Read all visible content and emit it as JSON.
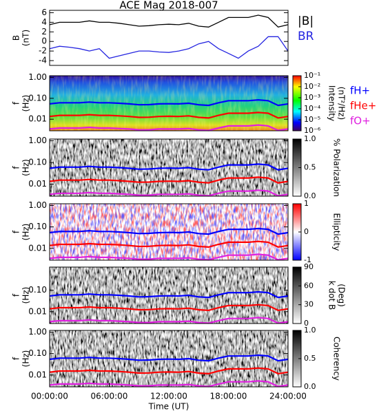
{
  "chart_data": [
    {
      "type": "line",
      "title": "ACE Mag 2018-007",
      "ylabel": [
        "B",
        "(nT)"
      ],
      "x": [
        0,
        1,
        2,
        3,
        4,
        5,
        6,
        7,
        8,
        9,
        10,
        11,
        12,
        13,
        14,
        15,
        16,
        17,
        18,
        19,
        20,
        21,
        22,
        23,
        24
      ],
      "xlim": [
        0,
        24
      ],
      "ylim": [
        -5,
        6.5
      ],
      "yticks": [
        -4,
        -2,
        0,
        2,
        4,
        6
      ],
      "series": [
        {
          "name": "|B|",
          "color": "#000000",
          "values": [
            3.5,
            4,
            4,
            4,
            4.3,
            4,
            4,
            3.8,
            3.5,
            3.2,
            3.3,
            3.5,
            3.6,
            3.5,
            3.8,
            3.2,
            3,
            4,
            5,
            5,
            5,
            5.5,
            5,
            3,
            3.5
          ]
        },
        {
          "name": "BR",
          "color": "#2424e0",
          "values": [
            -1.5,
            -1,
            -1.2,
            -1.5,
            -2,
            -1.5,
            -3.5,
            -3,
            -2.5,
            -2,
            -2,
            -2.2,
            -2.3,
            -2,
            -1.5,
            -0.5,
            0,
            -1.5,
            -2.5,
            -3.5,
            -2,
            -1,
            1,
            1,
            -2
          ]
        }
      ]
    },
    {
      "type": "spectrogram",
      "colorscale": "rainbow",
      "ylabel": [
        "f",
        "(Hz)"
      ],
      "zlabel": [
        "Intensity",
        "(nT²/Hz)"
      ],
      "x": [
        0,
        1,
        2,
        3,
        4,
        5,
        6,
        7,
        8,
        9,
        10,
        11,
        12,
        13,
        14,
        15,
        16,
        17,
        18,
        19,
        20,
        21,
        22,
        23,
        24
      ],
      "xlim": [
        0,
        24
      ],
      "ylim": [
        0.0028,
        1.2
      ],
      "ylog": true,
      "yticks": [
        0.01,
        {
          "value": 0.1,
          "label": "0.10"
        },
        {
          "value": 1,
          "label": "1.00"
        }
      ],
      "zlim": [
        1e-06,
        0.1
      ],
      "zlog": true,
      "zticks": [
        {
          "value": 1e-06,
          "label": "10⁻⁶"
        },
        {
          "value": 1e-05,
          "label": "10⁻⁵"
        },
        {
          "value": 0.0001,
          "label": "10⁻⁴"
        },
        {
          "value": 0.001,
          "label": "10⁻³"
        },
        {
          "value": 0.01,
          "label": "10⁻²"
        },
        {
          "value": 0.1,
          "label": "10⁻¹"
        }
      ],
      "series": [
        {
          "name": "fH+",
          "color": "#0000ff",
          "values": [
            0.054,
            0.061,
            0.061,
            0.061,
            0.066,
            0.061,
            0.061,
            0.058,
            0.054,
            0.049,
            0.05,
            0.054,
            0.055,
            0.054,
            0.058,
            0.049,
            0.046,
            0.061,
            0.077,
            0.077,
            0.077,
            0.084,
            0.077,
            0.046,
            0.054
          ]
        },
        {
          "name": "fHe+",
          "color": "#ff0000",
          "values": [
            0.0135,
            0.0153,
            0.0153,
            0.0153,
            0.0165,
            0.0153,
            0.0153,
            0.0145,
            0.0135,
            0.0123,
            0.0125,
            0.0135,
            0.0138,
            0.0135,
            0.0145,
            0.0123,
            0.0115,
            0.0153,
            0.0193,
            0.0193,
            0.0193,
            0.021,
            0.0193,
            0.0115,
            0.0135
          ]
        },
        {
          "name": "fO+",
          "color": "#e020e0",
          "values": [
            0.0034,
            0.0038,
            0.0038,
            0.0038,
            0.0041,
            0.0038,
            0.0038,
            0.0036,
            0.0034,
            0.0031,
            0.0031,
            0.0034,
            0.0034,
            0.0034,
            0.0036,
            0.0031,
            0.0029,
            0.0038,
            0.0048,
            0.0048,
            0.0048,
            0.0053,
            0.0048,
            0.0029,
            0.0034
          ]
        }
      ]
    },
    {
      "type": "spectrogram",
      "colorscale": "gray",
      "ylabel": [
        "f",
        "(Hz)"
      ],
      "zlabel": [
        "% Polarization"
      ],
      "x": [
        0,
        1,
        2,
        3,
        4,
        5,
        6,
        7,
        8,
        9,
        10,
        11,
        12,
        13,
        14,
        15,
        16,
        17,
        18,
        19,
        20,
        21,
        22,
        23,
        24
      ],
      "xlim": [
        0,
        24
      ],
      "ylim": [
        0.0028,
        1.2
      ],
      "ylog": true,
      "yticks": [
        0.01,
        {
          "value": 0.1,
          "label": "0.10"
        },
        {
          "value": 1,
          "label": "1.00"
        }
      ],
      "zlim": [
        0,
        1
      ],
      "zticks": [
        {
          "value": 0,
          "label": "0.0"
        },
        0.5,
        {
          "value": 1,
          "label": "1.0"
        }
      ],
      "series": [
        {
          "color": "#0000ff",
          "values": [
            0.054,
            0.061,
            0.061,
            0.061,
            0.066,
            0.061,
            0.061,
            0.058,
            0.054,
            0.049,
            0.05,
            0.054,
            0.055,
            0.054,
            0.058,
            0.049,
            0.046,
            0.061,
            0.077,
            0.077,
            0.077,
            0.084,
            0.077,
            0.046,
            0.054
          ]
        },
        {
          "color": "#ff0000",
          "values": [
            0.0135,
            0.0153,
            0.0153,
            0.0153,
            0.0165,
            0.0153,
            0.0153,
            0.0145,
            0.0135,
            0.0123,
            0.0125,
            0.0135,
            0.0138,
            0.0135,
            0.0145,
            0.0123,
            0.0115,
            0.0153,
            0.0193,
            0.0193,
            0.0193,
            0.021,
            0.0193,
            0.0115,
            0.0135
          ]
        },
        {
          "color": "#e020e0",
          "values": [
            0.0034,
            0.0038,
            0.0038,
            0.0038,
            0.0041,
            0.0038,
            0.0038,
            0.0036,
            0.0034,
            0.0031,
            0.0031,
            0.0034,
            0.0034,
            0.0034,
            0.0036,
            0.0031,
            0.0029,
            0.0038,
            0.0048,
            0.0048,
            0.0048,
            0.0053,
            0.0048,
            0.0029,
            0.0034
          ]
        }
      ]
    },
    {
      "type": "spectrogram",
      "colorscale": "bwr",
      "ylabel": [
        "f",
        "(Hz)"
      ],
      "zlabel": [
        "Ellipticity"
      ],
      "x": [
        0,
        1,
        2,
        3,
        4,
        5,
        6,
        7,
        8,
        9,
        10,
        11,
        12,
        13,
        14,
        15,
        16,
        17,
        18,
        19,
        20,
        21,
        22,
        23,
        24
      ],
      "xlim": [
        0,
        24
      ],
      "ylim": [
        0.0028,
        1.2
      ],
      "ylog": true,
      "yticks": [
        0.01,
        {
          "value": 0.1,
          "label": "0.10"
        },
        {
          "value": 1,
          "label": "1.00"
        }
      ],
      "zlim": [
        -1,
        1
      ],
      "zticks": [
        -1,
        0,
        1
      ],
      "series": [
        {
          "color": "#0000ff",
          "values": [
            0.054,
            0.061,
            0.061,
            0.061,
            0.066,
            0.061,
            0.061,
            0.058,
            0.054,
            0.049,
            0.05,
            0.054,
            0.055,
            0.054,
            0.058,
            0.049,
            0.046,
            0.061,
            0.077,
            0.077,
            0.077,
            0.084,
            0.077,
            0.046,
            0.054
          ]
        },
        {
          "color": "#ff0000",
          "values": [
            0.0135,
            0.0153,
            0.0153,
            0.0153,
            0.0165,
            0.0153,
            0.0153,
            0.0145,
            0.0135,
            0.0123,
            0.0125,
            0.0135,
            0.0138,
            0.0135,
            0.0145,
            0.0123,
            0.0115,
            0.0153,
            0.0193,
            0.0193,
            0.0193,
            0.021,
            0.0193,
            0.0115,
            0.0135
          ]
        },
        {
          "color": "#e020e0",
          "values": [
            0.0034,
            0.0038,
            0.0038,
            0.0038,
            0.0041,
            0.0038,
            0.0038,
            0.0036,
            0.0034,
            0.0031,
            0.0031,
            0.0034,
            0.0034,
            0.0034,
            0.0036,
            0.0031,
            0.0029,
            0.0038,
            0.0048,
            0.0048,
            0.0048,
            0.0053,
            0.0048,
            0.0029,
            0.0034
          ]
        }
      ]
    },
    {
      "type": "spectrogram",
      "colorscale": "gray",
      "ylabel": [
        "f",
        "(Hz)"
      ],
      "zlabel": [
        "k dot B",
        "(Deg)"
      ],
      "x": [
        0,
        1,
        2,
        3,
        4,
        5,
        6,
        7,
        8,
        9,
        10,
        11,
        12,
        13,
        14,
        15,
        16,
        17,
        18,
        19,
        20,
        21,
        22,
        23,
        24
      ],
      "xlim": [
        0,
        24
      ],
      "ylim": [
        0.0028,
        1.2
      ],
      "ylog": true,
      "yticks": [
        0.01,
        {
          "value": 0.1,
          "label": "0.10"
        }
      ],
      "zlim": [
        0,
        90
      ],
      "zticks": [
        0,
        30,
        60,
        90
      ],
      "series": [
        {
          "color": "#0000ff",
          "values": [
            0.054,
            0.061,
            0.061,
            0.061,
            0.066,
            0.061,
            0.061,
            0.058,
            0.054,
            0.049,
            0.05,
            0.054,
            0.055,
            0.054,
            0.058,
            0.049,
            0.046,
            0.061,
            0.077,
            0.077,
            0.077,
            0.084,
            0.077,
            0.046,
            0.054
          ]
        },
        {
          "color": "#ff0000",
          "values": [
            0.0135,
            0.0153,
            0.0153,
            0.0153,
            0.0165,
            0.0153,
            0.0153,
            0.0145,
            0.0135,
            0.0123,
            0.0125,
            0.0135,
            0.0138,
            0.0135,
            0.0145,
            0.0123,
            0.0115,
            0.0153,
            0.0193,
            0.0193,
            0.0193,
            0.021,
            0.0193,
            0.0115,
            0.0135
          ]
        },
        {
          "color": "#e020e0",
          "values": [
            0.0034,
            0.0038,
            0.0038,
            0.0038,
            0.0041,
            0.0038,
            0.0038,
            0.0036,
            0.0034,
            0.0031,
            0.0031,
            0.0034,
            0.0034,
            0.0034,
            0.0036,
            0.0031,
            0.0029,
            0.0038,
            0.0048,
            0.0048,
            0.0048,
            0.0053,
            0.0048,
            0.0029,
            0.0034
          ]
        }
      ]
    },
    {
      "type": "spectrogram",
      "colorscale": "gray",
      "ylabel": [
        "f",
        "(Hz)"
      ],
      "zlabel": [
        "Coherency"
      ],
      "x": [
        0,
        1,
        2,
        3,
        4,
        5,
        6,
        7,
        8,
        9,
        10,
        11,
        12,
        13,
        14,
        15,
        16,
        17,
        18,
        19,
        20,
        21,
        22,
        23,
        24
      ],
      "xlim": [
        0,
        24
      ],
      "ylim": [
        0.0028,
        1.2
      ],
      "ylog": true,
      "yticks": [
        0.01,
        {
          "value": 0.1,
          "label": "0.10"
        },
        {
          "value": 1,
          "label": "1.00"
        }
      ],
      "zlim": [
        0,
        1
      ],
      "zticks": [
        {
          "value": 0,
          "label": "0.0"
        },
        0.5,
        {
          "value": 1,
          "label": "1.0"
        }
      ],
      "xlabel": "Time (UT)",
      "xticks": [
        {
          "value": 0,
          "label": "00:00:00"
        },
        {
          "value": 6,
          "label": "06:00:00"
        },
        {
          "value": 12,
          "label": "12:00:00"
        },
        {
          "value": 18,
          "label": "18:00:00"
        },
        {
          "value": 24,
          "label": "24:00:00"
        }
      ],
      "series": [
        {
          "color": "#0000ff",
          "values": [
            0.054,
            0.061,
            0.061,
            0.061,
            0.066,
            0.061,
            0.061,
            0.058,
            0.054,
            0.049,
            0.05,
            0.054,
            0.055,
            0.054,
            0.058,
            0.049,
            0.046,
            0.061,
            0.077,
            0.077,
            0.077,
            0.084,
            0.077,
            0.046,
            0.054
          ]
        },
        {
          "color": "#ff0000",
          "values": [
            0.0135,
            0.0153,
            0.0153,
            0.0153,
            0.0165,
            0.0153,
            0.0153,
            0.0145,
            0.0135,
            0.0123,
            0.0125,
            0.0135,
            0.0138,
            0.0135,
            0.0145,
            0.0123,
            0.0115,
            0.0153,
            0.0193,
            0.0193,
            0.0193,
            0.021,
            0.0193,
            0.0115,
            0.0135
          ]
        },
        {
          "color": "#e020e0",
          "values": [
            0.0034,
            0.0038,
            0.0038,
            0.0038,
            0.0041,
            0.0038,
            0.0038,
            0.0036,
            0.0034,
            0.0031,
            0.0031,
            0.0034,
            0.0034,
            0.0034,
            0.0036,
            0.0031,
            0.0029,
            0.0038,
            0.0048,
            0.0048,
            0.0048,
            0.0053,
            0.0048,
            0.0029,
            0.0034
          ]
        }
      ]
    }
  ]
}
